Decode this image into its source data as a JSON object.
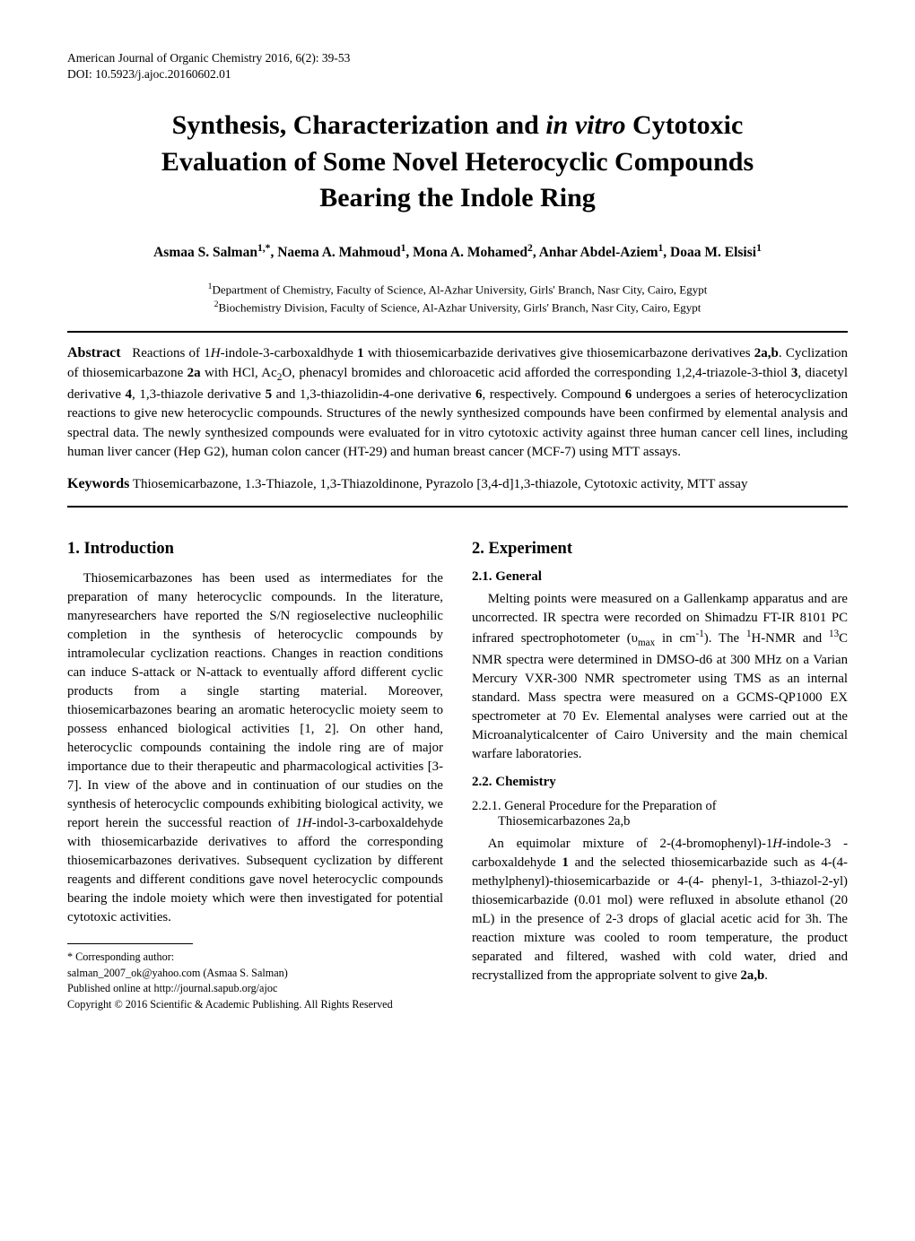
{
  "meta": {
    "journal_line": "American Journal of Organic Chemistry 2016, 6(2): 39-53",
    "doi_line": "DOI: 10.5923/j.ajoc.20160602.01"
  },
  "title_line1": "Synthesis, Characterization and ",
  "title_italic": "in vitro",
  "title_line1_tail": " Cytotoxic",
  "title_line2": "Evaluation of Some Novel Heterocyclic Compounds",
  "title_line3": "Bearing the Indole Ring",
  "authors_html": "Asmaa S. Salman<sup>1,*</sup>, Naema A. Mahmoud<sup>1</sup>, Mona A. Mohamed<sup>2</sup>, Anhar Abdel-Aziem<sup>1</sup>, Doaa M. Elsisi<sup>1</sup>",
  "affiliations": {
    "a1": "<sup>1</sup>Department of Chemistry, Faculty of Science, Al-Azhar University, Girls' Branch, Nasr City, Cairo, Egypt",
    "a2": "<sup>2</sup>Biochemistry Division, Faculty of Science, Al-Azhar University, Girls' Branch, Nasr City, Cairo, Egypt"
  },
  "abstract": {
    "label": "Abstract",
    "text_html": "&nbsp;&nbsp;Reactions of 1<span class=\"italic\">H</span>-indole-3-carboxaldhyde <span class=\"bold\">1</span> with thiosemicarbazide derivatives give thiosemicarbazone derivatives <span class=\"bold\">2a,b</span>. Cyclization of thiosemicarbazone <span class=\"bold\">2a</span> with HCl, Ac<sub>2</sub>O, phenacyl bromides and chloroacetic acid afforded the corresponding 1,2,4-triazole-3-thiol <span class=\"bold\">3</span>, diacetyl derivative <span class=\"bold\">4</span>, 1,3-thiazole derivative <span class=\"bold\">5</span> and 1,3-thiazolidin-4-one derivative <span class=\"bold\">6</span>, respectively. Compound <span class=\"bold\">6</span> undergoes a series of heterocyclization reactions to give new heterocyclic compounds. Structures of the newly synthesized compounds have been confirmed by elemental analysis and spectral data. The newly synthesized compounds were evaluated for in vitro cytotoxic activity against three human cancer cell lines, including human liver cancer (Hep G2), human colon cancer (HT-29) and human breast cancer (MCF-7) using MTT assays."
  },
  "keywords": {
    "label": "Keywords",
    "text": "  Thiosemicarbazone, 1.3-Thiazole, 1,3-Thiazoldinone, Pyrazolo [3,4-d]1,3-thiazole, Cytotoxic activity, MTT assay"
  },
  "left": {
    "h1": "1. Introduction",
    "p1_html": "Thiosemicarbazones has been used as intermediates for the preparation of many heterocyclic compounds. In the literature, manyresearchers have reported the S/N regioselective nucleophilic completion in the synthesis of heterocyclic compounds by intramolecular cyclization reactions. Changes in reaction conditions can induce S-attack or N-attack to eventually afford different cyclic products from a single starting material. Moreover, thiosemicarbazones bearing an aromatic heterocyclic moiety seem to possess enhanced biological activities [1, 2]. On other hand, heterocyclic compounds containing the indole ring are of major importance due to their therapeutic and pharmacological activities [3-7]. In view of the above and in continuation of our studies on the synthesis of heterocyclic compounds exhibiting biological activity, we report herein the successful reaction of <span class=\"italic\">1H</span>-indol-3-carboxaldehyde with thiosemicarbazide derivatives to afford the corresponding thiosemicarbazones derivatives. Subsequent cyclization by different reagents and different conditions gave novel heterocyclic compounds bearing the indole moiety which were then investigated for potential cytotoxic activities.",
    "fn1": "* Corresponding author:",
    "fn2": "salman_2007_ok@yahoo.com (Asmaa S. Salman)",
    "fn3": "Published online at http://journal.sapub.org/ajoc",
    "fn4": "Copyright © 2016 Scientific & Academic Publishing. All Rights Reserved"
  },
  "right": {
    "h1": "2. Experiment",
    "h21": "2.1. General",
    "p21_html": "Melting points were measured on a Gallenkamp apparatus and are uncorrected. IR spectra were recorded on Shimadzu FT-IR 8101 PC infrared spectrophotometer (υ<sub>max</sub> in cm<sup>-1</sup>). The <sup>1</sup>H-NMR and <sup>13</sup>C NMR spectra were determined in DMSO-d6 at 300 MHz on a Varian Mercury VXR-300 NMR spectrometer using TMS as an internal standard. Mass spectra were measured on a GCMS-QP1000 EX spectrometer at 70 Ev. Elemental analyses were carried out at the Microanalyticalcenter of Cairo University and the main chemical warfare laboratories.",
    "h22": "2.2. Chemistry",
    "h221_l1": "2.2.1. General Procedure for the Preparation of",
    "h221_l2": "Thiosemicarbazones 2a,b",
    "p221_html": "An equimolar mixture of 2-(4-bromophenyl)-1<span class=\"italic\">H</span>-indole-3 -carboxaldehyde <span class=\"bold\">1</span> and the selected thiosemicarbazide such as 4-(4-methylphenyl)-thiosemicarbazide or 4-(4- phenyl-1, 3-thiazol-2-yl) thiosemicarbazide (0.01 mol) were refluxed in absolute ethanol (20 mL) in the presence of 2-3 drops of glacial acetic acid for 3h. The reaction mixture was cooled to room temperature, the product separated and filtered, washed with cold water, dried and recrystallized from the appropriate solvent to give <span class=\"bold\">2a,b</span>."
  }
}
